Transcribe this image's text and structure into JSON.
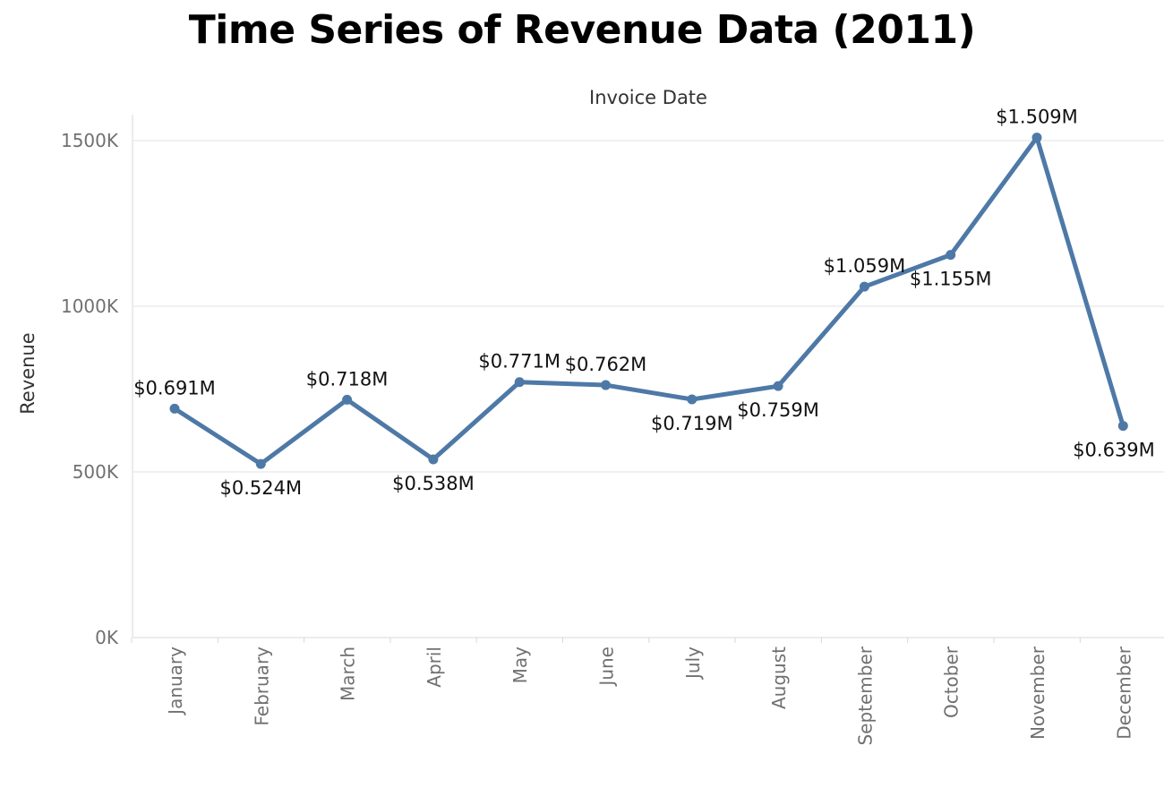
{
  "chart_data": {
    "type": "line",
    "title": "Time Series of Revenue Data (2011)",
    "xlabel": "Invoice Date",
    "ylabel": "Revenue",
    "categories": [
      "January",
      "February",
      "March",
      "April",
      "May",
      "June",
      "July",
      "August",
      "September",
      "October",
      "November",
      "December"
    ],
    "values": [
      691,
      524,
      718,
      538,
      771,
      762,
      719,
      759,
      1059,
      1155,
      1509,
      639
    ],
    "data_labels": [
      "$0.691M",
      "$0.524M",
      "$0.718M",
      "$0.538M",
      "$0.771M",
      "$0.762M",
      "$0.719M",
      "$0.759M",
      "$1.059M",
      "$1.155M",
      "$1.509M",
      "$0.639M"
    ],
    "label_positions": [
      "above",
      "below",
      "above",
      "below",
      "above",
      "above",
      "below",
      "below",
      "above",
      "below",
      "above",
      "below"
    ],
    "yticks": [
      0,
      500,
      1000,
      1500
    ],
    "ytick_labels": [
      "0K",
      "500K",
      "1000K",
      "1500K"
    ],
    "ylim": [
      0,
      1590
    ],
    "x_axis_position": "top",
    "line_color": "#4E79A7",
    "grid": true
  }
}
